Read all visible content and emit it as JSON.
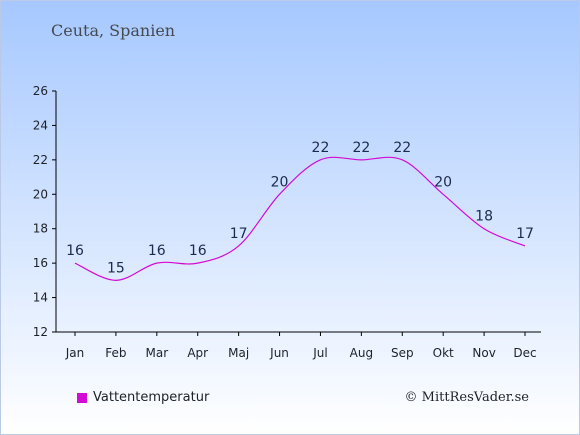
{
  "header": {
    "title": "Ceuta, Spanien"
  },
  "credit": "© MittResVader.se",
  "legend": {
    "label": "Vattentemperatur",
    "color": "#d40bd4"
  },
  "chart_data": {
    "type": "line",
    "title": "Ceuta, Spanien",
    "xlabel": "",
    "ylabel": "",
    "categories": [
      "Jan",
      "Feb",
      "Mar",
      "Apr",
      "Maj",
      "Jun",
      "Jul",
      "Aug",
      "Sep",
      "Okt",
      "Nov",
      "Dec"
    ],
    "series": [
      {
        "name": "Vattentemperatur",
        "values": [
          16,
          15,
          16,
          16,
          17,
          20,
          22,
          22,
          22,
          20,
          18,
          17
        ],
        "color": "#d40bd4"
      }
    ],
    "ylim": [
      12,
      26
    ],
    "yticks": [
      12,
      14,
      16,
      18,
      20,
      22,
      24,
      26
    ],
    "grid": false,
    "legend_position": "bottom-left",
    "data_labels": true
  }
}
